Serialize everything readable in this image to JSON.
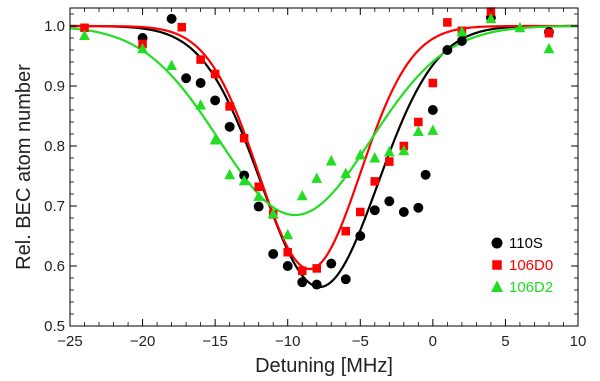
{
  "chart_data": {
    "type": "scatter",
    "xlabel": "Detuning [MHz]",
    "ylabel": "Rel. BEC atom number",
    "xlim": [
      -25,
      10
    ],
    "ylim": [
      0.5,
      1.03
    ],
    "xticks": [
      -25,
      -20,
      -15,
      -10,
      -5,
      0,
      5,
      10
    ],
    "xtick_labels": [
      "−25",
      "−20",
      "−15",
      "−10",
      "−5",
      "0",
      "5",
      "10"
    ],
    "yticks": [
      0.5,
      0.6,
      0.7,
      0.8,
      0.9,
      1.0
    ],
    "ytick_labels": [
      "0.5",
      "0.6",
      "0.7",
      "0.8",
      "0.9",
      "1.0"
    ],
    "legend_position": "bottom-right",
    "series": [
      {
        "name": "110S",
        "color": "#000000",
        "marker": "circle",
        "points": [
          [
            -20,
            0.98
          ],
          [
            -18,
            1.012
          ],
          [
            -17,
            0.913
          ],
          [
            -16,
            0.905
          ],
          [
            -15,
            0.876
          ],
          [
            -14,
            0.832
          ],
          [
            -13,
            0.751
          ],
          [
            -12,
            0.699
          ],
          [
            -11,
            0.62
          ],
          [
            -10,
            0.6
          ],
          [
            -9,
            0.573
          ],
          [
            -8,
            0.569
          ],
          [
            -7,
            0.604
          ],
          [
            -6,
            0.578
          ],
          [
            -5,
            0.65
          ],
          [
            -4,
            0.693
          ],
          [
            -3,
            0.708
          ],
          [
            -2,
            0.69
          ],
          [
            -1,
            0.697
          ],
          [
            -0.5,
            0.752
          ],
          [
            0,
            0.86
          ],
          [
            1,
            0.96
          ],
          [
            2,
            0.975
          ],
          [
            4,
            1.014
          ],
          [
            8,
            0.99
          ]
        ],
        "fit": {
          "center": -7.8,
          "sigma": 4.0,
          "depth": 0.435
        }
      },
      {
        "name": "106D0",
        "color": "#ff0000",
        "marker": "square",
        "points": [
          [
            -24,
            0.997
          ],
          [
            -20,
            0.97
          ],
          [
            -17.3,
            0.998
          ],
          [
            -16,
            0.944
          ],
          [
            -15,
            0.92
          ],
          [
            -14,
            0.866
          ],
          [
            -13,
            0.813
          ],
          [
            -12,
            0.732
          ],
          [
            -11,
            0.686
          ],
          [
            -10,
            0.623
          ],
          [
            -9,
            0.592
          ],
          [
            -8,
            0.596
          ],
          [
            -6,
            0.658
          ],
          [
            -5,
            0.69
          ],
          [
            -4,
            0.741
          ],
          [
            -3,
            0.774
          ],
          [
            -2,
            0.8
          ],
          [
            -1,
            0.84
          ],
          [
            0,
            0.905
          ],
          [
            1,
            1.006
          ],
          [
            2,
            0.992
          ],
          [
            4,
            1.024
          ],
          [
            8,
            0.988
          ]
        ],
        "fit": {
          "center": -8.5,
          "sigma": 3.5,
          "depth": 0.405
        }
      },
      {
        "name": "106D2",
        "color": "#22dd22",
        "marker": "triangle",
        "points": [
          [
            -24,
            0.984
          ],
          [
            -20,
            0.962
          ],
          [
            -18,
            0.934
          ],
          [
            -16,
            0.868
          ],
          [
            -15,
            0.81
          ],
          [
            -14,
            0.752
          ],
          [
            -13,
            0.742
          ],
          [
            -12,
            0.716
          ],
          [
            -11,
            0.687
          ],
          [
            -10,
            0.652
          ],
          [
            -9,
            0.717
          ],
          [
            -8,
            0.746
          ],
          [
            -7,
            0.775
          ],
          [
            -6,
            0.754
          ],
          [
            -5,
            0.785
          ],
          [
            -4,
            0.78
          ],
          [
            -3,
            0.79
          ],
          [
            -2,
            0.792
          ],
          [
            -1,
            0.824
          ],
          [
            0,
            0.826
          ],
          [
            2,
            0.99
          ],
          [
            4,
            1.012
          ],
          [
            6,
            0.997
          ],
          [
            8,
            0.962
          ]
        ],
        "fit": {
          "center": -9.5,
          "sigma": 5.2,
          "depth": 0.315
        }
      }
    ]
  }
}
